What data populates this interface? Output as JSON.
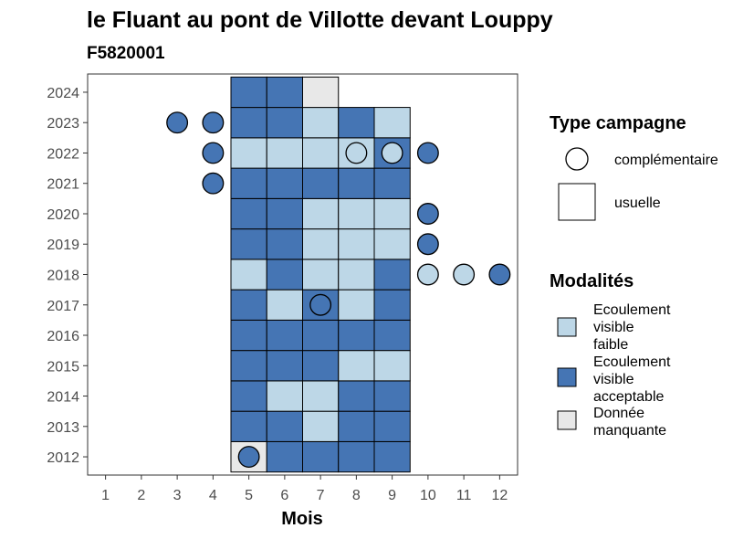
{
  "chart_data": {
    "type": "heatmap",
    "title": "le Fluant au pont de Villotte devant Louppy",
    "subtitle": "F5820001",
    "xlabel": "Mois",
    "ylabel": "",
    "x_ticks": [
      "1",
      "2",
      "3",
      "4",
      "5",
      "6",
      "7",
      "8",
      "9",
      "10",
      "11",
      "12"
    ],
    "y_ticks": [
      "2012",
      "2013",
      "2014",
      "2015",
      "2016",
      "2017",
      "2018",
      "2019",
      "2020",
      "2021",
      "2022",
      "2023",
      "2024"
    ],
    "xlim": [
      0.5,
      12.5
    ],
    "ylim": [
      2011.4,
      2024.6
    ],
    "colors": {
      "Ecoulement visible faible": "#bdd7e7",
      "Ecoulement visible acceptable": "#4575b4",
      "Donnée manquante": "#e8e8e8"
    },
    "usuelle": [
      {
        "year": 2012,
        "month": 5,
        "modalite": "Donnée manquante"
      },
      {
        "year": 2012,
        "month": 6,
        "modalite": "Ecoulement visible acceptable"
      },
      {
        "year": 2012,
        "month": 7,
        "modalite": "Ecoulement visible acceptable"
      },
      {
        "year": 2012,
        "month": 8,
        "modalite": "Ecoulement visible acceptable"
      },
      {
        "year": 2012,
        "month": 9,
        "modalite": "Ecoulement visible acceptable"
      },
      {
        "year": 2013,
        "month": 5,
        "modalite": "Ecoulement visible acceptable"
      },
      {
        "year": 2013,
        "month": 6,
        "modalite": "Ecoulement visible acceptable"
      },
      {
        "year": 2013,
        "month": 7,
        "modalite": "Ecoulement visible faible"
      },
      {
        "year": 2013,
        "month": 8,
        "modalite": "Ecoulement visible acceptable"
      },
      {
        "year": 2013,
        "month": 9,
        "modalite": "Ecoulement visible acceptable"
      },
      {
        "year": 2014,
        "month": 5,
        "modalite": "Ecoulement visible acceptable"
      },
      {
        "year": 2014,
        "month": 6,
        "modalite": "Ecoulement visible faible"
      },
      {
        "year": 2014,
        "month": 7,
        "modalite": "Ecoulement visible faible"
      },
      {
        "year": 2014,
        "month": 8,
        "modalite": "Ecoulement visible acceptable"
      },
      {
        "year": 2014,
        "month": 9,
        "modalite": "Ecoulement visible acceptable"
      },
      {
        "year": 2015,
        "month": 5,
        "modalite": "Ecoulement visible acceptable"
      },
      {
        "year": 2015,
        "month": 6,
        "modalite": "Ecoulement visible acceptable"
      },
      {
        "year": 2015,
        "month": 7,
        "modalite": "Ecoulement visible acceptable"
      },
      {
        "year": 2015,
        "month": 8,
        "modalite": "Ecoulement visible faible"
      },
      {
        "year": 2015,
        "month": 9,
        "modalite": "Ecoulement visible faible"
      },
      {
        "year": 2016,
        "month": 5,
        "modalite": "Ecoulement visible acceptable"
      },
      {
        "year": 2016,
        "month": 6,
        "modalite": "Ecoulement visible acceptable"
      },
      {
        "year": 2016,
        "month": 7,
        "modalite": "Ecoulement visible acceptable"
      },
      {
        "year": 2016,
        "month": 8,
        "modalite": "Ecoulement visible acceptable"
      },
      {
        "year": 2016,
        "month": 9,
        "modalite": "Ecoulement visible acceptable"
      },
      {
        "year": 2017,
        "month": 5,
        "modalite": "Ecoulement visible acceptable"
      },
      {
        "year": 2017,
        "month": 6,
        "modalite": "Ecoulement visible faible"
      },
      {
        "year": 2017,
        "month": 7,
        "modalite": "Ecoulement visible acceptable"
      },
      {
        "year": 2017,
        "month": 8,
        "modalite": "Ecoulement visible faible"
      },
      {
        "year": 2017,
        "month": 9,
        "modalite": "Ecoulement visible acceptable"
      },
      {
        "year": 2018,
        "month": 5,
        "modalite": "Ecoulement visible faible"
      },
      {
        "year": 2018,
        "month": 6,
        "modalite": "Ecoulement visible acceptable"
      },
      {
        "year": 2018,
        "month": 7,
        "modalite": "Ecoulement visible faible"
      },
      {
        "year": 2018,
        "month": 8,
        "modalite": "Ecoulement visible faible"
      },
      {
        "year": 2018,
        "month": 9,
        "modalite": "Ecoulement visible acceptable"
      },
      {
        "year": 2019,
        "month": 5,
        "modalite": "Ecoulement visible acceptable"
      },
      {
        "year": 2019,
        "month": 6,
        "modalite": "Ecoulement visible acceptable"
      },
      {
        "year": 2019,
        "month": 7,
        "modalite": "Ecoulement visible faible"
      },
      {
        "year": 2019,
        "month": 8,
        "modalite": "Ecoulement visible faible"
      },
      {
        "year": 2019,
        "month": 9,
        "modalite": "Ecoulement visible faible"
      },
      {
        "year": 2020,
        "month": 5,
        "modalite": "Ecoulement visible acceptable"
      },
      {
        "year": 2020,
        "month": 6,
        "modalite": "Ecoulement visible acceptable"
      },
      {
        "year": 2020,
        "month": 7,
        "modalite": "Ecoulement visible faible"
      },
      {
        "year": 2020,
        "month": 8,
        "modalite": "Ecoulement visible faible"
      },
      {
        "year": 2020,
        "month": 9,
        "modalite": "Ecoulement visible faible"
      },
      {
        "year": 2021,
        "month": 5,
        "modalite": "Ecoulement visible acceptable"
      },
      {
        "year": 2021,
        "month": 6,
        "modalite": "Ecoulement visible acceptable"
      },
      {
        "year": 2021,
        "month": 7,
        "modalite": "Ecoulement visible acceptable"
      },
      {
        "year": 2021,
        "month": 8,
        "modalite": "Ecoulement visible acceptable"
      },
      {
        "year": 2021,
        "month": 9,
        "modalite": "Ecoulement visible acceptable"
      },
      {
        "year": 2022,
        "month": 5,
        "modalite": "Ecoulement visible faible"
      },
      {
        "year": 2022,
        "month": 6,
        "modalite": "Ecoulement visible faible"
      },
      {
        "year": 2022,
        "month": 7,
        "modalite": "Ecoulement visible faible"
      },
      {
        "year": 2022,
        "month": 8,
        "modalite": "Ecoulement visible faible"
      },
      {
        "year": 2022,
        "month": 9,
        "modalite": "Ecoulement visible acceptable"
      },
      {
        "year": 2023,
        "month": 5,
        "modalite": "Ecoulement visible acceptable"
      },
      {
        "year": 2023,
        "month": 6,
        "modalite": "Ecoulement visible acceptable"
      },
      {
        "year": 2023,
        "month": 7,
        "modalite": "Ecoulement visible faible"
      },
      {
        "year": 2023,
        "month": 8,
        "modalite": "Ecoulement visible acceptable"
      },
      {
        "year": 2023,
        "month": 9,
        "modalite": "Ecoulement visible faible"
      },
      {
        "year": 2024,
        "month": 5,
        "modalite": "Ecoulement visible acceptable"
      },
      {
        "year": 2024,
        "month": 6,
        "modalite": "Ecoulement visible acceptable"
      },
      {
        "year": 2024,
        "month": 7,
        "modalite": "Donnée manquante"
      }
    ],
    "complementaire": [
      {
        "year": 2012,
        "month": 5,
        "modalite": "Ecoulement visible acceptable"
      },
      {
        "year": 2017,
        "month": 7,
        "modalite": "Ecoulement visible acceptable"
      },
      {
        "year": 2018,
        "month": 10,
        "modalite": "Ecoulement visible faible"
      },
      {
        "year": 2018,
        "month": 11,
        "modalite": "Ecoulement visible faible"
      },
      {
        "year": 2018,
        "month": 12,
        "modalite": "Ecoulement visible acceptable"
      },
      {
        "year": 2019,
        "month": 10,
        "modalite": "Ecoulement visible acceptable"
      },
      {
        "year": 2020,
        "month": 10,
        "modalite": "Ecoulement visible acceptable"
      },
      {
        "year": 2021,
        "month": 4,
        "modalite": "Ecoulement visible acceptable"
      },
      {
        "year": 2022,
        "month": 4,
        "modalite": "Ecoulement visible acceptable"
      },
      {
        "year": 2022,
        "month": 8,
        "modalite": "Ecoulement visible faible"
      },
      {
        "year": 2022,
        "month": 9,
        "modalite": "Ecoulement visible faible"
      },
      {
        "year": 2022,
        "month": 10,
        "modalite": "Ecoulement visible acceptable"
      },
      {
        "year": 2023,
        "month": 3,
        "modalite": "Ecoulement visible acceptable"
      },
      {
        "year": 2023,
        "month": 4,
        "modalite": "Ecoulement visible acceptable"
      }
    ],
    "legend": {
      "type_title": "Type campagne",
      "type_items": [
        "complémentaire",
        "usuelle"
      ],
      "modalites_title": "Modalités",
      "modalites_items": [
        {
          "key": "Ecoulement visible faible",
          "lines": [
            "Ecoulement",
            "visible",
            "faible"
          ]
        },
        {
          "key": "Ecoulement visible acceptable",
          "lines": [
            "Ecoulement",
            "visible",
            "acceptable"
          ]
        },
        {
          "key": "Donnée manquante",
          "lines": [
            "Donnée",
            "manquante"
          ]
        }
      ],
      "placement": "right"
    },
    "grid": false
  }
}
